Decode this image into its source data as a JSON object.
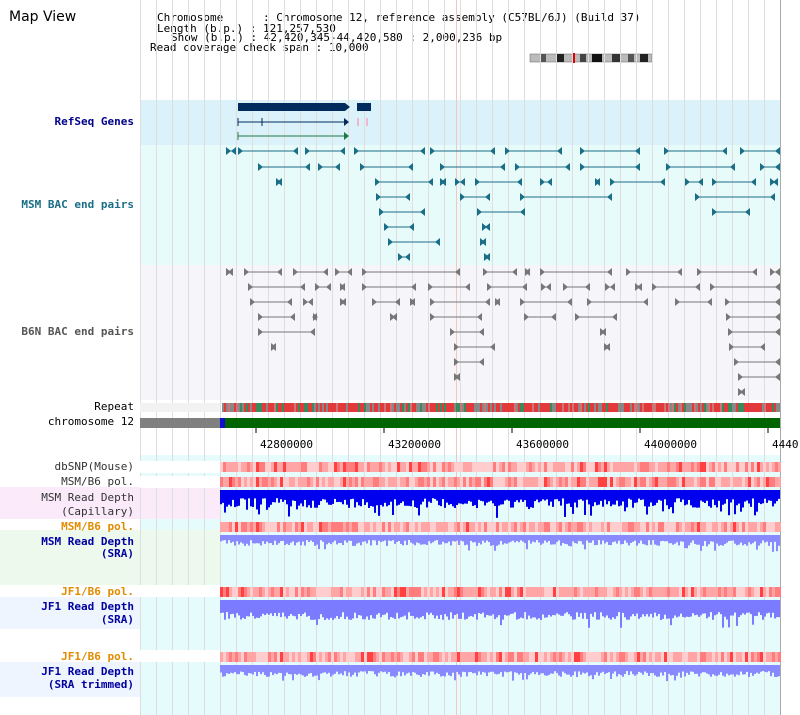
{
  "title": "Map View",
  "info": {
    "chromosome_label": "Chromosome",
    "chromosome_value": "Chromosome 12, reference assembly (C57BL/6J) (Build 37)",
    "length_label": "Length (b.p.)",
    "length_value": "121,257,530",
    "show_label": "Show (b.p.)",
    "show_value": "42,420,345-44,420,580 : 2,000,236 bp",
    "coverage_label": "Read coverage check span",
    "coverage_value": "10,000"
  },
  "tracks": {
    "refseq": "RefSeq Genes",
    "msm_bac": "MSM BAC end pairs",
    "b6n_bac": "B6N BAC end pairs",
    "repeat": "Repeat",
    "chromosome": "chromosome 12",
    "dbsnp": "dbSNP(Mouse)",
    "msm_b6_pol_cap": "MSM/B6 pol.",
    "msm_read_depth_cap_1": "MSM Read Depth",
    "msm_read_depth_cap_2": "(Capillary)",
    "msm_b6_pol_sra": "MSM/B6 pol.",
    "msm_read_depth_sra_1": "MSM Read Depth",
    "msm_read_depth_sra_2": "(SRA)",
    "jf1_b6_pol_sra": "JF1/B6 pol.",
    "jf1_read_depth_sra_1": "JF1 Read Depth",
    "jf1_read_depth_sra_2": "(SRA)",
    "jf1_b6_pol_trim": "JF1/B6 pol.",
    "jf1_read_depth_trim_1": "JF1 Read Depth",
    "jf1_read_depth_trim_2": "(SRA trimmed)"
  },
  "axis_ticks": [
    "42800000",
    "43200000",
    "43600000",
    "44000000",
    "4440"
  ],
  "colors": {
    "refseq_bg": "#dcf2fb",
    "msm_bg": "#e8fbfb",
    "b6n_bg": "#f6f6fa",
    "gene": "#002b5c",
    "msm_pair": "#1a6e86",
    "b6n_pair": "#777777",
    "chrom_green": "#006400",
    "chrom_gray": "#808080",
    "depth_blue": "#0000ee",
    "depth_light_blue": "#7b7bff"
  }
}
